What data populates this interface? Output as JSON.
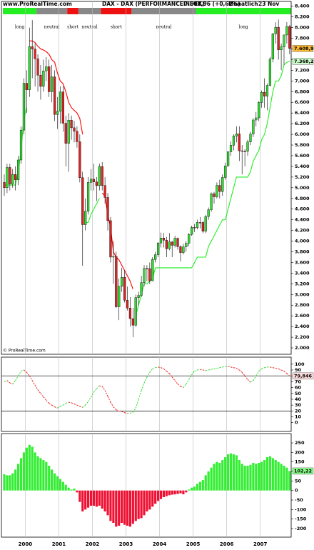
{
  "header": {
    "site": "www.ProRealTime.com",
    "title": "DAX - DAX (PERFORMANCEINDEX)",
    "quote": "7.608,96 (+0,62%)",
    "period": "Monatlich",
    "date": "23 Nov",
    "copyright": "© ProRealTime.com"
  },
  "signal_bar": [
    {
      "label": "long",
      "color": "#22ee22",
      "start": 0
    },
    {
      "label": "neutral",
      "color": "#888888",
      "start": 12
    },
    {
      "label": "short",
      "color": "#ee1111",
      "start": 23
    },
    {
      "label": "neutral",
      "color": "#888888",
      "start": 27
    },
    {
      "label": "short",
      "color": "#ee1111",
      "start": 35
    },
    {
      "label": "neutral",
      "color": "#888888",
      "start": 46
    },
    {
      "label": "long",
      "color": "#22ee22",
      "start": 69
    }
  ],
  "chart_data": [
    {
      "type": "candlestick",
      "up_color": "#33dd33",
      "down_color": "#dd2222",
      "open": [
        5100,
        5000,
        5380,
        5070,
        5250,
        5150,
        5520,
        6080,
        6958,
        6835,
        7644,
        7599,
        7414,
        7109,
        6898,
        7189,
        7267,
        6798,
        7077,
        6373,
        6434,
        6795,
        6208,
        5830,
        6265,
        6123,
        6058,
        5861,
        5188,
        4308,
        4560,
        5100,
        5160,
        5108,
        5039,
        5398,
        5041,
        4818,
        4383,
        3700,
        3712,
        2769,
        3153,
        3321,
        2893,
        2747,
        2548,
        2424,
        2942,
        2983,
        3221,
        3487,
        3485,
        3257,
        3656,
        3745,
        3965,
        4058,
        4018,
        3857,
        3985,
        3921,
        4053,
        3896,
        3785,
        3893,
        3960,
        4126,
        4256,
        4254,
        4350,
        4349,
        4185,
        4460,
        4587,
        4887,
        4830,
        5044,
        4929,
        5193,
        5408,
        5674,
        5796,
        5970,
        6009,
        5692,
        5683,
        5682,
        5859,
        6004,
        6269,
        6309,
        6597,
        6789,
        6716,
        6917,
        7409,
        7883,
        8007,
        7584,
        7638,
        7862,
        8019
      ],
      "high": [
        5250,
        5450,
        5450,
        5350,
        5400,
        5600,
        6150,
        7050,
        7200,
        8000,
        8140,
        7700,
        7500,
        7300,
        7400,
        7450,
        7400,
        7300,
        7200,
        6700,
        6900,
        6900,
        6350,
        6400,
        6350,
        6250,
        6150,
        6000,
        5300,
        4800,
        5200,
        5350,
        5450,
        5200,
        5450,
        5480,
        5200,
        4900,
        4450,
        4000,
        3800,
        3300,
        3500,
        3450,
        3150,
        2950,
        2750,
        3000,
        3050,
        3350,
        3550,
        3550,
        3600,
        3700,
        3800,
        3980,
        4160,
        4150,
        4080,
        4150,
        4000,
        4100,
        4070,
        3920,
        3950,
        4000,
        4150,
        4290,
        4320,
        4400,
        4450,
        4380,
        4490,
        4630,
        4910,
        4920,
        5100,
        5150,
        5250,
        5470,
        5680,
        5870,
        6000,
        6150,
        6150,
        5800,
        5720,
        5900,
        6050,
        6300,
        6420,
        6620,
        6820,
        7050,
        6950,
        7450,
        7900,
        8100,
        8150,
        7700,
        7870,
        8100,
        8050
      ],
      "low": [
        4850,
        4900,
        4950,
        5000,
        4950,
        5050,
        5450,
        6000,
        6400,
        6700,
        7050,
        6900,
        6800,
        6650,
        6800,
        7000,
        6700,
        6600,
        6250,
        6100,
        6200,
        6050,
        5400,
        5300,
        5900,
        5850,
        5750,
        5100,
        3540,
        4200,
        4500,
        4950,
        4950,
        4750,
        4950,
        4950,
        4700,
        4200,
        3600,
        3200,
        2750,
        2520,
        3050,
        2850,
        2700,
        2400,
        2200,
        2400,
        2800,
        2950,
        3150,
        3250,
        3200,
        3250,
        3600,
        3700,
        3880,
        3880,
        3700,
        3830,
        3700,
        3880,
        3840,
        3620,
        3750,
        3800,
        3900,
        4100,
        4170,
        4220,
        4240,
        4150,
        4150,
        4400,
        4550,
        4700,
        4800,
        4800,
        4850,
        5150,
        5400,
        5600,
        5700,
        5850,
        5500,
        5250,
        5400,
        5600,
        5800,
        5950,
        6150,
        6250,
        6500,
        6500,
        6450,
        6900,
        7350,
        7700,
        7400,
        7200,
        7300,
        7700,
        7500
      ],
      "close": [
        5000,
        5380,
        5070,
        5250,
        5150,
        5520,
        6080,
        6958,
        6835,
        7644,
        7599,
        7414,
        7109,
        6898,
        7189,
        7267,
        6798,
        7077,
        6373,
        6434,
        6795,
        6208,
        5830,
        6265,
        6123,
        6058,
        5861,
        5188,
        4308,
        4560,
        5100,
        5160,
        5108,
        5039,
        5398,
        5041,
        4818,
        4383,
        3700,
        3712,
        2769,
        3153,
        3321,
        2893,
        2747,
        2548,
        2424,
        2942,
        2983,
        3221,
        3487,
        3485,
        3257,
        3656,
        3745,
        3965,
        4058,
        4018,
        3857,
        3985,
        3921,
        4053,
        3896,
        3785,
        3893,
        3960,
        4126,
        4256,
        4254,
        4350,
        4349,
        4185,
        4460,
        4587,
        4887,
        4830,
        5044,
        4929,
        5193,
        5408,
        5674,
        5796,
        5970,
        6009,
        5692,
        5683,
        5682,
        5859,
        6004,
        6269,
        6309,
        6597,
        6789,
        6716,
        6917,
        7409,
        7883,
        8007,
        7584,
        7638,
        7862,
        8019,
        7608.96
      ],
      "end_label": "7.608,96",
      "end_label_color": "#ffbb33",
      "series": [
        {
          "color": "#ff0000",
          "values": [
            null,
            null,
            null,
            null,
            null,
            null,
            null,
            null,
            null,
            7750,
            7750,
            7720,
            7650,
            7600,
            7580,
            7550,
            7500,
            7400,
            7350,
            7150,
            7000,
            6950,
            6800,
            6600,
            6500,
            6450,
            6400,
            6300,
            6000,
            null,
            null,
            null,
            null,
            null,
            null,
            4900,
            4850,
            4500,
            4250,
            3800,
            3700,
            3650,
            3550,
            3450,
            3350,
            3250,
            3100,
            null,
            null,
            null,
            null,
            null,
            null,
            null,
            null,
            null,
            null,
            null,
            null,
            null,
            null,
            null,
            null,
            null,
            null,
            null,
            null,
            null,
            null,
            null,
            null,
            null,
            null,
            null,
            null,
            null,
            null,
            null,
            null,
            null,
            null,
            null,
            null,
            null,
            null,
            null,
            null,
            null,
            null,
            null,
            null,
            null,
            null,
            null,
            null,
            null,
            null,
            null,
            null,
            null,
            null,
            null,
            null,
            null,
            null
          ]
        },
        {
          "color": "#22ee22",
          "end_label": "7.368,2",
          "values": [
            5050,
            5050,
            5050,
            5050,
            5050,
            5300,
            5700,
            6300,
            6500,
            null,
            null,
            null,
            null,
            null,
            null,
            null,
            null,
            null,
            null,
            null,
            null,
            null,
            null,
            null,
            null,
            null,
            null,
            null,
            null,
            4350,
            4350,
            4500,
            4600,
            4700,
            4800,
            null,
            null,
            null,
            null,
            null,
            null,
            null,
            null,
            null,
            null,
            null,
            null,
            2600,
            2800,
            3000,
            3200,
            3200,
            3250,
            3300,
            3500,
            3500,
            3500,
            3500,
            3500,
            3500,
            3500,
            3500,
            3500,
            3500,
            3500,
            3500,
            3500,
            3500,
            3600,
            3700,
            3700,
            3700,
            3700,
            3900,
            4000,
            4100,
            4200,
            4300,
            4400,
            4400,
            4600,
            4800,
            5000,
            5200,
            5200,
            5200,
            5200,
            5200,
            5300,
            5500,
            5600,
            5700,
            5900,
            6000,
            6200,
            6500,
            6800,
            7000,
            7000,
            7100,
            7300,
            7350,
            7368.2
          ]
        }
      ],
      "ylim": [
        1880,
        8490
      ],
      "yticks": [
        {
          "value": 2000,
          "label": "2.000"
        },
        {
          "value": 2200,
          "label": "2.200"
        },
        {
          "value": 2400,
          "label": "2.400"
        },
        {
          "value": 2600,
          "label": "2.600"
        },
        {
          "value": 2800,
          "label": "2.800"
        },
        {
          "value": 3000,
          "label": "3.000"
        },
        {
          "value": 3200,
          "label": "3.200"
        },
        {
          "value": 3400,
          "label": "3.400"
        },
        {
          "value": 3600,
          "label": "3.600"
        },
        {
          "value": 3800,
          "label": "3.800"
        },
        {
          "value": 4000,
          "label": "4.000"
        },
        {
          "value": 4200,
          "label": "4.200"
        },
        {
          "value": 4400,
          "label": "4.400"
        },
        {
          "value": 4600,
          "label": "4.600"
        },
        {
          "value": 4800,
          "label": "4.800"
        },
        {
          "value": 5000,
          "label": "5.000"
        },
        {
          "value": 5200,
          "label": "5.200"
        },
        {
          "value": 5400,
          "label": "5.400"
        },
        {
          "value": 5600,
          "label": "5.600"
        },
        {
          "value": 5800,
          "label": "5.800"
        },
        {
          "value": 6000,
          "label": "6.000"
        },
        {
          "value": 6200,
          "label": "6.200"
        },
        {
          "value": 6400,
          "label": "6.400"
        },
        {
          "value": 6600,
          "label": "6.600"
        },
        {
          "value": 6800,
          "label": "6.800"
        },
        {
          "value": 7000,
          "label": "7.000"
        },
        {
          "value": 7200,
          "label": "7.200"
        },
        {
          "value": 7400,
          "label": "7.400"
        },
        {
          "value": 7600,
          "label": "7.600"
        },
        {
          "value": 7800,
          "label": "7.800"
        },
        {
          "value": 8000,
          "label": "8.000"
        },
        {
          "value": 8200,
          "label": "8.200"
        },
        {
          "value": 8400,
          "label": "8.400"
        }
      ]
    },
    {
      "type": "line",
      "up_color": "#33dd33",
      "down_color": "#ee2222",
      "values": [
        70,
        72,
        68,
        66,
        72,
        80,
        88,
        90,
        86,
        80,
        72,
        64,
        56,
        50,
        44,
        38,
        33,
        30,
        27,
        25,
        28,
        30,
        33,
        35,
        34,
        32,
        30,
        28,
        26,
        30,
        36,
        44,
        52,
        58,
        63,
        62,
        55,
        45,
        35,
        27,
        22,
        20,
        19,
        17,
        16,
        16,
        18,
        25,
        40,
        55,
        68,
        78,
        86,
        92,
        94,
        95,
        94,
        92,
        88,
        84,
        78,
        72,
        66,
        62,
        60,
        66,
        74,
        82,
        88,
        90,
        91,
        90,
        89,
        90,
        91,
        92,
        93,
        94,
        95,
        96,
        96,
        95,
        94,
        93,
        90,
        86,
        80,
        74,
        69,
        72,
        80,
        88,
        92,
        94,
        95,
        95,
        94,
        93,
        92,
        90,
        88,
        84,
        79.846
      ],
      "end_label": "79,846",
      "end_label_color": "#ffdddd",
      "reference_lines": [
        80,
        20
      ],
      "ylim": [
        -15,
        112
      ],
      "yticks": [
        0,
        10,
        20,
        30,
        40,
        50,
        60,
        70,
        80,
        90,
        100
      ]
    },
    {
      "type": "bar",
      "positive_color": "#33ee33",
      "negative_color": "#ee1133",
      "categories": [
        null,
        null,
        null,
        null,
        null,
        null,
        null,
        null,
        "2000",
        null,
        null,
        null,
        null,
        null,
        null,
        null,
        null,
        null,
        null,
        null,
        "2001",
        null,
        null,
        null,
        null,
        null,
        null,
        null,
        null,
        null,
        null,
        null,
        "2002",
        null,
        null,
        null,
        null,
        null,
        null,
        null,
        null,
        null,
        null,
        null,
        "2003",
        null,
        null,
        null,
        null,
        null,
        null,
        null,
        null,
        null,
        null,
        null,
        "2004",
        null,
        null,
        null,
        null,
        null,
        null,
        null,
        null,
        null,
        null,
        null,
        "2005",
        null,
        null,
        null,
        null,
        null,
        null,
        null,
        null,
        null,
        null,
        null,
        "2006",
        null,
        null,
        null,
        null,
        null,
        null,
        null,
        null,
        null,
        null,
        null,
        "2007",
        null,
        null,
        null,
        null,
        null,
        null,
        null,
        null,
        null,
        null
      ],
      "values": [
        85,
        80,
        80,
        90,
        110,
        140,
        170,
        200,
        225,
        240,
        230,
        200,
        180,
        170,
        160,
        150,
        130,
        110,
        90,
        75,
        60,
        45,
        30,
        15,
        5,
        10,
        -10,
        -60,
        -110,
        -100,
        -90,
        -80,
        -80,
        -85,
        -80,
        -95,
        -110,
        -130,
        -160,
        -170,
        -190,
        -185,
        -170,
        -180,
        -185,
        -190,
        -175,
        -160,
        -150,
        -145,
        -130,
        -110,
        -100,
        -85,
        -70,
        -55,
        -45,
        -35,
        -30,
        -25,
        -22,
        -20,
        -18,
        -15,
        -20,
        -10,
        5,
        15,
        20,
        35,
        45,
        55,
        80,
        100,
        120,
        140,
        150,
        145,
        160,
        175,
        190,
        195,
        190,
        185,
        160,
        140,
        130,
        130,
        135,
        145,
        140,
        145,
        150,
        160,
        175,
        180,
        170,
        160,
        150,
        140,
        130,
        120,
        102.22
      ],
      "end_label": "102,22",
      "end_label_color": "#88ff88",
      "ylim": [
        -245,
        299
      ],
      "yticks": [
        -200,
        -150,
        -100,
        -50,
        0,
        50,
        100,
        150,
        200,
        250
      ]
    }
  ]
}
